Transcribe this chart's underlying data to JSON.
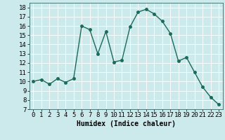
{
  "x": [
    0,
    1,
    2,
    3,
    4,
    5,
    6,
    7,
    8,
    9,
    10,
    11,
    12,
    13,
    14,
    15,
    16,
    17,
    18,
    19,
    20,
    21,
    22,
    23
  ],
  "y": [
    10,
    10.2,
    9.7,
    10.3,
    9.9,
    10.3,
    16.0,
    15.6,
    13.0,
    15.4,
    12.1,
    12.3,
    15.9,
    17.5,
    17.8,
    17.3,
    16.5,
    15.2,
    12.2,
    12.6,
    11.0,
    9.4,
    8.3,
    7.5
  ],
  "line_color": "#1a6b5a",
  "marker": "o",
  "markersize": 2.5,
  "linewidth": 1.0,
  "xlabel": "Humidex (Indice chaleur)",
  "xlim": [
    -0.5,
    23.5
  ],
  "ylim": [
    7,
    18.5
  ],
  "yticks": [
    7,
    8,
    9,
    10,
    11,
    12,
    13,
    14,
    15,
    16,
    17,
    18
  ],
  "xticks": [
    0,
    1,
    2,
    3,
    4,
    5,
    6,
    7,
    8,
    9,
    10,
    11,
    12,
    13,
    14,
    15,
    16,
    17,
    18,
    19,
    20,
    21,
    22,
    23
  ],
  "bg_color": "#cce9ec",
  "grid_color": "#ffffff",
  "xlabel_fontsize": 7,
  "tick_fontsize": 6.5
}
